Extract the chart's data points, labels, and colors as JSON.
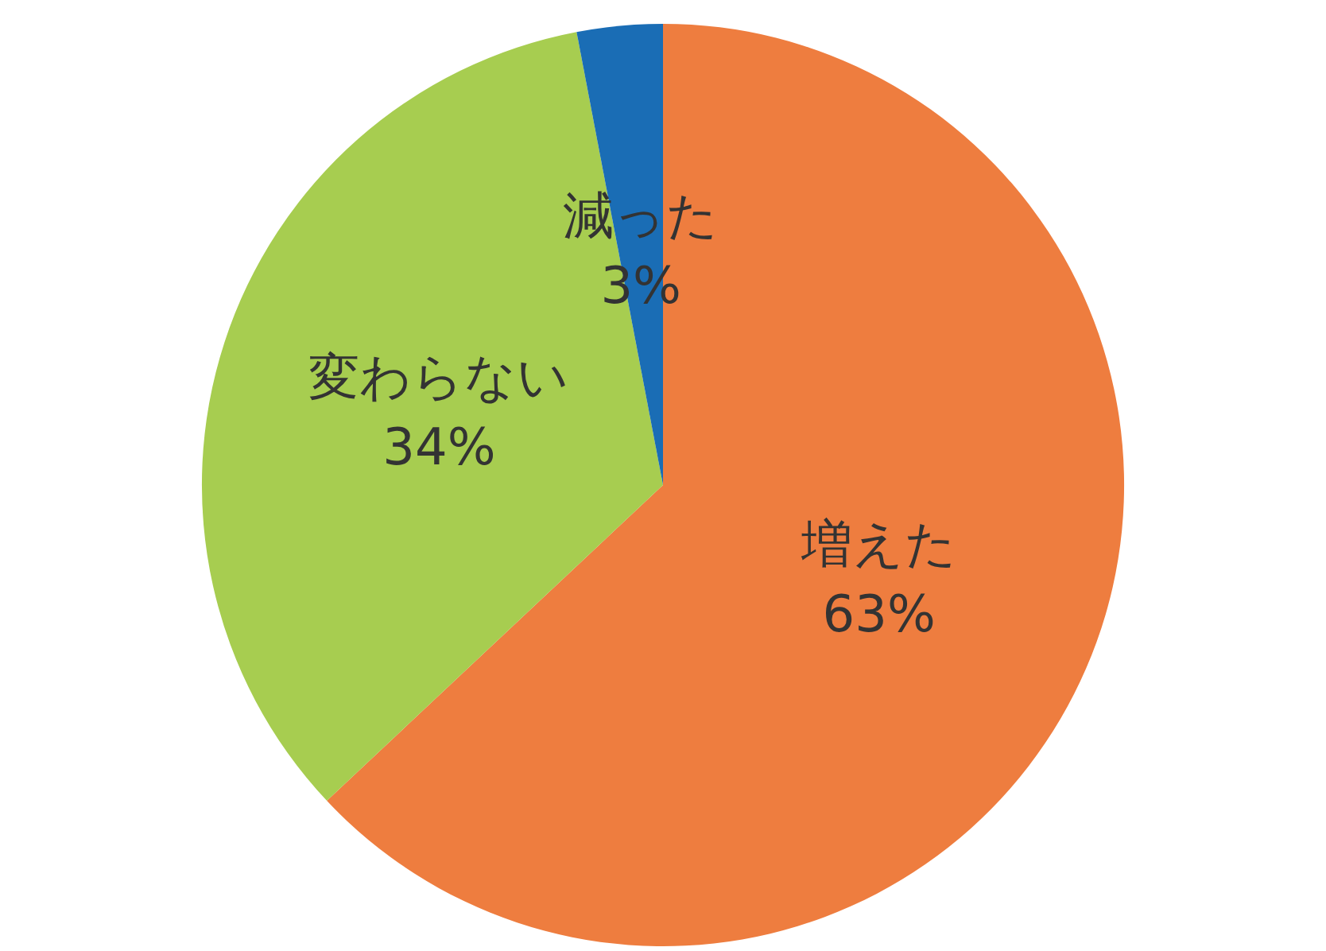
{
  "chart_data": {
    "type": "pie",
    "categories": [
      "増えた",
      "変わらない",
      "減った"
    ],
    "values": [
      63,
      34,
      3
    ],
    "colors": [
      "#ee7d3f",
      "#a7cd50",
      "#1a6db5"
    ],
    "value_labels": [
      "63%",
      "34%",
      "3%"
    ],
    "legend": false
  }
}
